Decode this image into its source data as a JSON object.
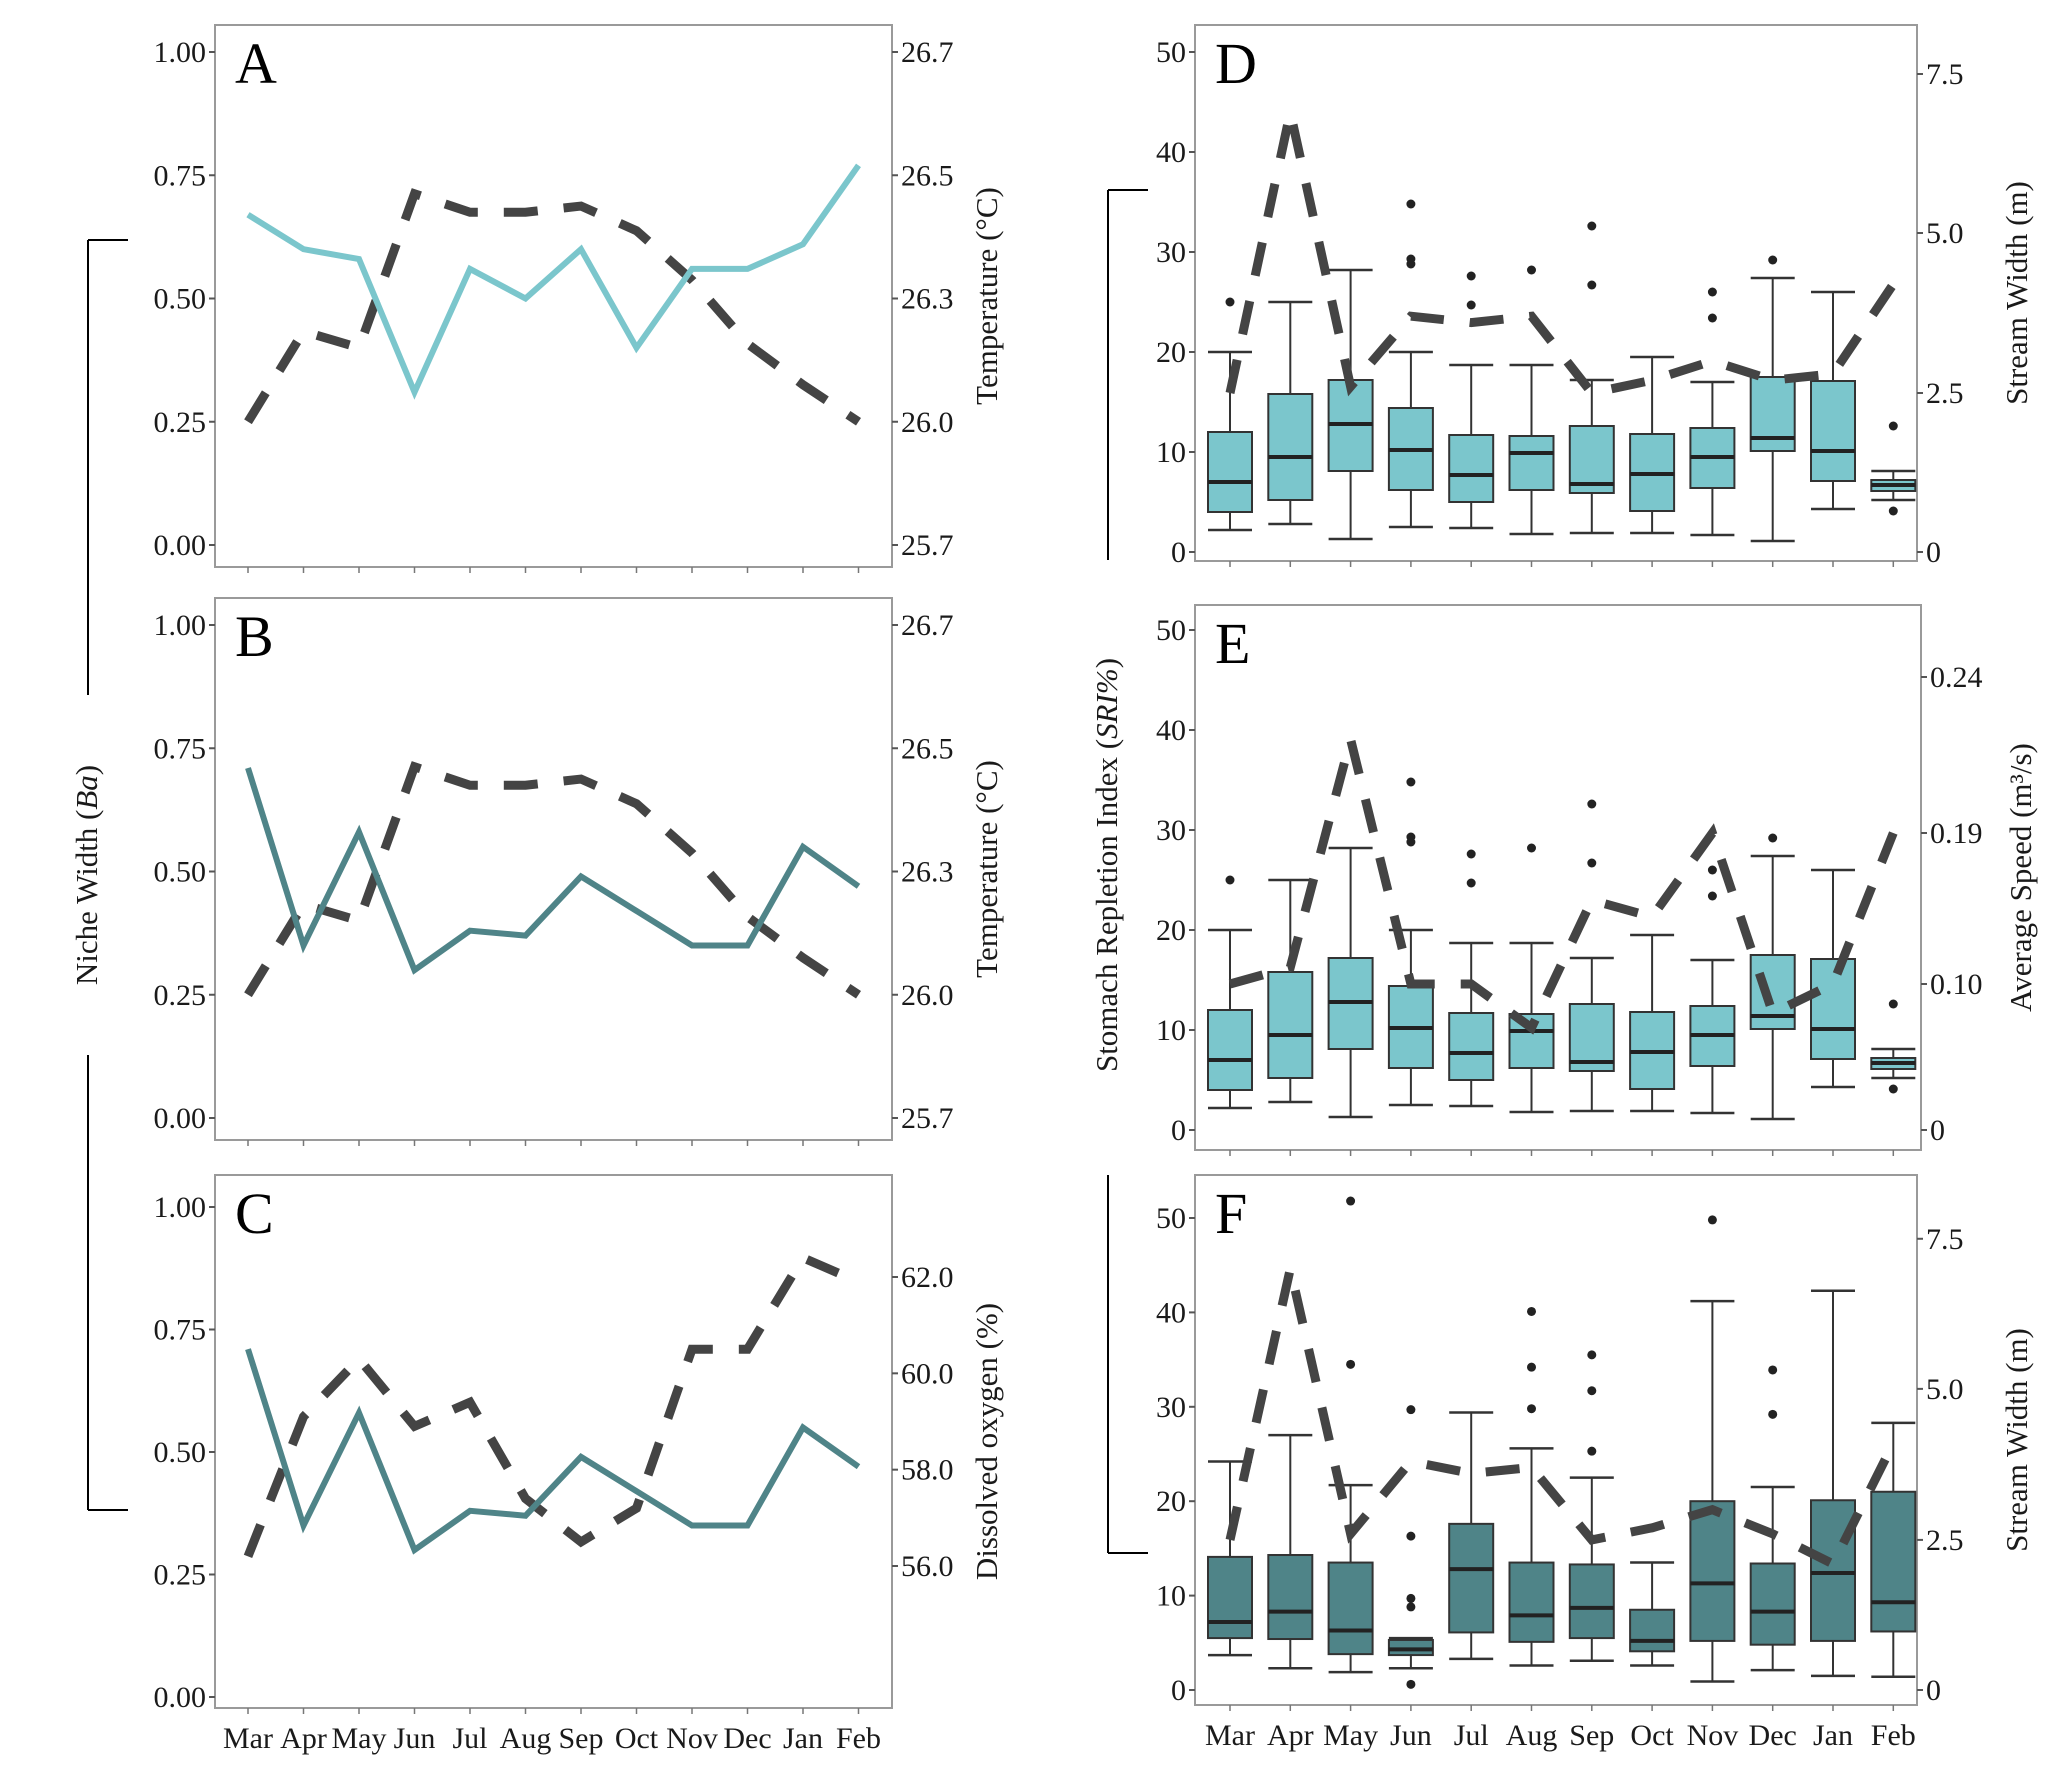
{
  "figure": {
    "left_shared_ylabel_main": "Niche Width (",
    "left_shared_ylabel_italic": "Ba",
    "left_shared_ylabel_end": ")",
    "right_shared_ylabel_main": "Stomach Repletion Index (",
    "right_shared_ylabel_italic": "SRI%",
    "right_shared_ylabel_end": ")",
    "months": [
      "Mar",
      "Apr",
      "May",
      "Jun",
      "Jul",
      "Aug",
      "Sep",
      "Oct",
      "Nov",
      "Dec",
      "Jan",
      "Feb"
    ],
    "colors": {
      "light_teal": "#7bc6cc",
      "dark_teal": "#4f8488",
      "dashed": "#444444",
      "frame": "#9a9a9a"
    }
  },
  "chart_data": [
    {
      "panel": "A",
      "type": "line",
      "x": [
        "Mar",
        "Apr",
        "May",
        "Jun",
        "Jul",
        "Aug",
        "Sep",
        "Oct",
        "Nov",
        "Dec",
        "Jan",
        "Feb"
      ],
      "ylabel_left": "",
      "ylim_left": [
        0,
        1
      ],
      "yticks_left": [
        "0.00",
        "0.25",
        "0.50",
        "0.75",
        "1.00"
      ],
      "ylabel_right": "Temperature (°C)",
      "yticks_right": [
        "25.7",
        "26.0",
        "26.3",
        "26.5",
        "26.7"
      ],
      "series": [
        {
          "name": "Niche Width (Ba)",
          "style": "solid",
          "color": "#7bc6cc",
          "values": [
            0.67,
            0.6,
            0.58,
            0.31,
            0.56,
            0.5,
            0.6,
            0.4,
            0.56,
            0.56,
            0.61,
            0.77
          ]
        },
        {
          "name": "Temperature",
          "style": "dashed",
          "axis": "right",
          "color": "#444444",
          "values": [
            26.0,
            26.22,
            26.18,
            26.47,
            26.44,
            26.44,
            26.45,
            26.41,
            26.33,
            26.19,
            26.09,
            26.0
          ]
        }
      ]
    },
    {
      "panel": "B",
      "type": "line",
      "x": [
        "Mar",
        "Apr",
        "May",
        "Jun",
        "Jul",
        "Aug",
        "Sep",
        "Oct",
        "Nov",
        "Dec",
        "Jan",
        "Feb"
      ],
      "ylim_left": [
        0,
        1
      ],
      "yticks_left": [
        "0.00",
        "0.25",
        "0.50",
        "0.75",
        "1.00"
      ],
      "ylabel_right": "Temperature (°C)",
      "yticks_right": [
        "25.7",
        "26.0",
        "26.3",
        "26.5",
        "26.7"
      ],
      "series": [
        {
          "name": "Niche Width (Ba)",
          "style": "solid",
          "color": "#4f8488",
          "values": [
            0.71,
            0.35,
            0.58,
            0.3,
            0.38,
            0.37,
            0.49,
            0.42,
            0.35,
            0.35,
            0.55,
            0.47
          ]
        },
        {
          "name": "Temperature",
          "style": "dashed",
          "axis": "right",
          "color": "#444444",
          "values": [
            26.0,
            26.22,
            26.18,
            26.47,
            26.44,
            26.44,
            26.45,
            26.41,
            26.33,
            26.19,
            26.09,
            26.0
          ]
        }
      ]
    },
    {
      "panel": "C",
      "type": "line",
      "x": [
        "Mar",
        "Apr",
        "May",
        "Jun",
        "Jul",
        "Aug",
        "Sep",
        "Oct",
        "Nov",
        "Dec",
        "Jan",
        "Feb"
      ],
      "ylim_left": [
        0,
        1
      ],
      "yticks_left": [
        "0.00",
        "0.25",
        "0.50",
        "0.75",
        "1.00"
      ],
      "ylabel_right": "Dissolved oxygen (%)",
      "yticks_right": [
        "56.0",
        "58.0",
        "60.0",
        "62.0"
      ],
      "series": [
        {
          "name": "Niche Width (Ba)",
          "style": "solid",
          "color": "#4f8488",
          "values": [
            0.71,
            0.35,
            0.58,
            0.3,
            0.38,
            0.37,
            0.49,
            0.42,
            0.35,
            0.35,
            0.55,
            0.47
          ]
        },
        {
          "name": "Dissolved oxygen",
          "style": "dashed",
          "axis": "right",
          "color": "#444444",
          "values": [
            56.2,
            59.1,
            60.3,
            58.9,
            59.4,
            57.4,
            56.5,
            57.2,
            60.5,
            60.5,
            62.4,
            61.9
          ]
        }
      ]
    },
    {
      "panel": "D",
      "type": "box",
      "x": [
        "Mar",
        "Apr",
        "May",
        "Jun",
        "Jul",
        "Aug",
        "Sep",
        "Oct",
        "Nov",
        "Dec",
        "Jan",
        "Feb"
      ],
      "ylim_left": [
        0,
        50
      ],
      "yticks_left": [
        "0",
        "10",
        "20",
        "30",
        "40",
        "50"
      ],
      "ylabel_right": "Stream Width (m)",
      "yticks_right": [
        "0",
        "2.5",
        "5.0",
        "7.5"
      ],
      "box_color": "#7bc6cc",
      "boxes": [
        {
          "min": 2.2,
          "q1": 4.0,
          "median": 7.0,
          "q3": 12.0,
          "max": 20.0,
          "outliers": [
            25.0
          ]
        },
        {
          "min": 2.8,
          "q1": 5.2,
          "median": 9.5,
          "q3": 15.8,
          "max": 25.0,
          "outliers": []
        },
        {
          "min": 1.3,
          "q1": 8.1,
          "median": 12.8,
          "q3": 17.2,
          "max": 28.2,
          "outliers": []
        },
        {
          "min": 2.5,
          "q1": 6.2,
          "median": 10.2,
          "q3": 14.4,
          "max": 20.0,
          "outliers": [
            28.8,
            29.3,
            34.8
          ]
        },
        {
          "min": 2.4,
          "q1": 5.0,
          "median": 7.7,
          "q3": 11.7,
          "max": 18.7,
          "outliers": [
            24.7,
            27.6
          ]
        },
        {
          "min": 1.8,
          "q1": 6.2,
          "median": 9.9,
          "q3": 11.6,
          "max": 18.7,
          "outliers": [
            28.2
          ]
        },
        {
          "min": 1.9,
          "q1": 5.9,
          "median": 6.8,
          "q3": 12.6,
          "max": 17.2,
          "outliers": [
            26.7,
            32.6
          ]
        },
        {
          "min": 1.9,
          "q1": 4.1,
          "median": 7.8,
          "q3": 11.8,
          "max": 19.5,
          "outliers": []
        },
        {
          "min": 1.7,
          "q1": 6.4,
          "median": 9.5,
          "q3": 12.4,
          "max": 17.0,
          "outliers": [
            23.4,
            26.0
          ]
        },
        {
          "min": 1.1,
          "q1": 10.1,
          "median": 11.4,
          "q3": 17.5,
          "max": 27.4,
          "outliers": [
            29.2
          ]
        },
        {
          "min": 4.3,
          "q1": 7.1,
          "median": 10.1,
          "q3": 17.1,
          "max": 26.0,
          "outliers": []
        },
        {
          "min": 5.2,
          "q1": 6.1,
          "median": 6.7,
          "q3": 7.2,
          "max": 8.1,
          "outliers": [
            4.1,
            12.6
          ]
        }
      ],
      "dashed_series": {
        "name": "Stream Width (m)",
        "axis": "right",
        "values": [
          2.5,
          6.9,
          2.6,
          3.7,
          3.6,
          3.7,
          2.5,
          2.7,
          3.0,
          2.7,
          2.8,
          4.2
        ]
      }
    },
    {
      "panel": "E",
      "type": "box",
      "x": [
        "Mar",
        "Apr",
        "May",
        "Jun",
        "Jul",
        "Aug",
        "Sep",
        "Oct",
        "Nov",
        "Dec",
        "Jan",
        "Feb"
      ],
      "ylim_left": [
        0,
        50
      ],
      "yticks_left": [
        "0",
        "10",
        "20",
        "30",
        "40",
        "50"
      ],
      "ylabel_right": "Average Speed (m³/s)",
      "yticks_right": [
        "0",
        "0.10",
        "0.19",
        "0.24"
      ],
      "box_color": "#7bc6cc",
      "boxes": [
        {
          "min": 2.2,
          "q1": 4.0,
          "median": 7.0,
          "q3": 12.0,
          "max": 20.0,
          "outliers": [
            25.0
          ]
        },
        {
          "min": 2.8,
          "q1": 5.2,
          "median": 9.5,
          "q3": 15.8,
          "max": 25.0,
          "outliers": []
        },
        {
          "min": 1.3,
          "q1": 8.1,
          "median": 12.8,
          "q3": 17.2,
          "max": 28.2,
          "outliers": []
        },
        {
          "min": 2.5,
          "q1": 6.2,
          "median": 10.2,
          "q3": 14.4,
          "max": 20.0,
          "outliers": [
            28.8,
            29.3,
            34.8
          ]
        },
        {
          "min": 2.4,
          "q1": 5.0,
          "median": 7.7,
          "q3": 11.7,
          "max": 18.7,
          "outliers": [
            24.7,
            27.6
          ]
        },
        {
          "min": 1.8,
          "q1": 6.2,
          "median": 9.9,
          "q3": 11.6,
          "max": 18.7,
          "outliers": [
            28.2
          ]
        },
        {
          "min": 1.9,
          "q1": 5.9,
          "median": 6.8,
          "q3": 12.6,
          "max": 17.2,
          "outliers": [
            26.7,
            32.6
          ]
        },
        {
          "min": 1.9,
          "q1": 4.1,
          "median": 7.8,
          "q3": 11.8,
          "max": 19.5,
          "outliers": []
        },
        {
          "min": 1.7,
          "q1": 6.4,
          "median": 9.5,
          "q3": 12.4,
          "max": 17.0,
          "outliers": [
            23.4,
            26.0
          ]
        },
        {
          "min": 1.1,
          "q1": 10.1,
          "median": 11.4,
          "q3": 17.5,
          "max": 27.4,
          "outliers": [
            29.2
          ]
        },
        {
          "min": 4.3,
          "q1": 7.1,
          "median": 10.1,
          "q3": 17.1,
          "max": 26.0,
          "outliers": []
        },
        {
          "min": 5.2,
          "q1": 6.1,
          "median": 6.7,
          "q3": 7.2,
          "max": 8.1,
          "outliers": [
            4.1,
            12.6
          ]
        }
      ],
      "dashed_series": {
        "name": "Average Speed (m³/s)",
        "axis": "right",
        "values": [
          0.1,
          0.11,
          0.22,
          0.1,
          0.1,
          0.07,
          0.15,
          0.14,
          0.19,
          0.08,
          0.1,
          0.19
        ]
      }
    },
    {
      "panel": "F",
      "type": "box",
      "x": [
        "Mar",
        "Apr",
        "May",
        "Jun",
        "Jul",
        "Aug",
        "Sep",
        "Oct",
        "Nov",
        "Dec",
        "Jan",
        "Feb"
      ],
      "ylim_left": [
        0,
        50
      ],
      "yticks_left": [
        "0",
        "10",
        "20",
        "30",
        "40",
        "50"
      ],
      "ylabel_right": "Stream Width (m)",
      "yticks_right": [
        "0",
        "2.5",
        "5.0",
        "7.5"
      ],
      "box_color": "#4f8488",
      "boxes": [
        {
          "min": 3.7,
          "q1": 5.5,
          "median": 7.2,
          "q3": 14.1,
          "max": 24.2,
          "outliers": []
        },
        {
          "min": 2.3,
          "q1": 5.4,
          "median": 8.3,
          "q3": 14.3,
          "max": 27.0,
          "outliers": []
        },
        {
          "min": 1.9,
          "q1": 3.8,
          "median": 6.3,
          "q3": 13.5,
          "max": 21.7,
          "outliers": [
            34.5,
            51.8
          ]
        },
        {
          "min": 2.3,
          "q1": 3.7,
          "median": 4.3,
          "q3": 5.3,
          "max": 5.5,
          "outliers": [
            0.6,
            8.8,
            9.7,
            16.3,
            29.7
          ]
        },
        {
          "min": 3.3,
          "q1": 6.1,
          "median": 12.8,
          "q3": 17.6,
          "max": 29.4,
          "outliers": []
        },
        {
          "min": 2.6,
          "q1": 5.1,
          "median": 7.9,
          "q3": 13.5,
          "max": 25.6,
          "outliers": [
            29.8,
            34.2,
            40.1
          ]
        },
        {
          "min": 3.1,
          "q1": 5.5,
          "median": 8.7,
          "q3": 13.3,
          "max": 22.5,
          "outliers": [
            25.3,
            31.7,
            35.5
          ]
        },
        {
          "min": 2.6,
          "q1": 4.1,
          "median": 5.2,
          "q3": 8.5,
          "max": 13.5,
          "outliers": []
        },
        {
          "min": 0.9,
          "q1": 5.2,
          "median": 11.3,
          "q3": 20.0,
          "max": 41.2,
          "outliers": [
            49.8
          ]
        },
        {
          "min": 2.1,
          "q1": 4.8,
          "median": 8.3,
          "q3": 13.4,
          "max": 21.5,
          "outliers": [
            29.2,
            33.9
          ]
        },
        {
          "min": 1.5,
          "q1": 5.2,
          "median": 12.4,
          "q3": 20.1,
          "max": 42.3,
          "outliers": []
        },
        {
          "min": 1.4,
          "q1": 6.2,
          "median": 9.3,
          "q3": 21.0,
          "max": 28.3,
          "outliers": []
        }
      ],
      "dashed_series": {
        "name": "Stream Width (m)",
        "axis": "right",
        "values": [
          2.5,
          7.0,
          2.6,
          3.8,
          3.6,
          3.7,
          2.5,
          2.7,
          3.0,
          2.6,
          2.1,
          4.1
        ]
      }
    }
  ]
}
